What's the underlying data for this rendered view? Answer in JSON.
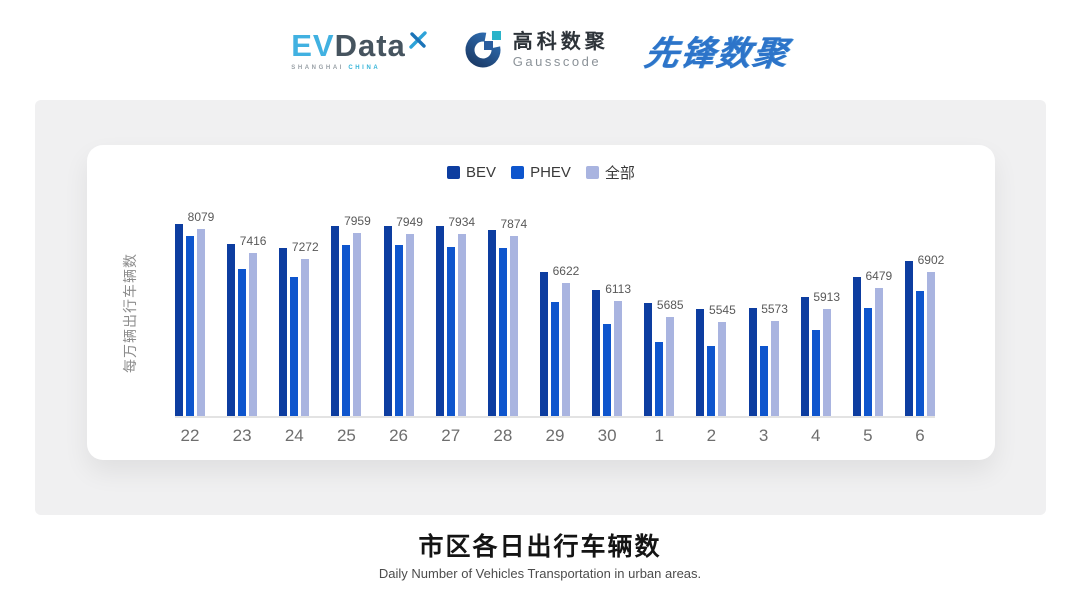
{
  "header": {
    "evdata": {
      "ev": "EV",
      "data": "Data",
      "tagline_left": "SHANGHAI",
      "tagline_right": "CHINA"
    },
    "gausscode": {
      "cn": "高科数聚",
      "en": "Gausscode"
    },
    "xianfeng": "先锋数聚"
  },
  "chart_data": {
    "type": "bar",
    "title": "市区各日出行车辆数",
    "subtitle": "Daily Number of Vehicles Transportation in urban areas.",
    "ylabel": "每万辆出行车辆数",
    "categories": [
      "22",
      "23",
      "24",
      "25",
      "26",
      "27",
      "28",
      "29",
      "30",
      "1",
      "2",
      "3",
      "4",
      "5",
      "6"
    ],
    "series": [
      {
        "name": "BEV",
        "color": "#0d3da0",
        "values": [
          8220,
          7680,
          7560,
          8170,
          8150,
          8150,
          8050,
          6920,
          6430,
          6060,
          5900,
          5930,
          6230,
          6780,
          7210
        ],
        "data_labels": false
      },
      {
        "name": "PHEV",
        "color": "#0e55cd",
        "values": [
          7880,
          6990,
          6780,
          7650,
          7640,
          7590,
          7560,
          6100,
          5500,
          5020,
          4910,
          4910,
          5330,
          5930,
          6380
        ],
        "data_labels": false
      },
      {
        "name": "全部",
        "color": "#a9b4e0",
        "values": [
          8079,
          7416,
          7272,
          7959,
          7949,
          7934,
          7874,
          6622,
          6113,
          5685,
          5545,
          5573,
          5913,
          6479,
          6902
        ],
        "data_labels": true
      }
    ],
    "ylim": [
      3000,
      8700
    ],
    "grid": false,
    "legend_position": "top-center",
    "colors": {
      "axis_line": "#e3e3e3",
      "tick_label": "#6e6e6e",
      "value_label": "#595959",
      "ylabel": "#8c8c8c",
      "panel_bg": "#f0f0f1",
      "card_bg": "#ffffff"
    }
  },
  "footer": {
    "title": "市区各日出行车辆数",
    "subtitle": "Daily Number of Vehicles Transportation in urban areas."
  }
}
